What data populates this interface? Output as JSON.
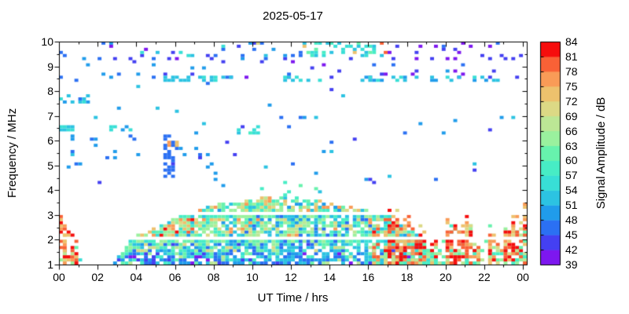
{
  "chart_data": {
    "type": "heatmap",
    "title": "2025-05-17",
    "xlabel": "UT Time / hrs",
    "ylabel": "Frequency / MHz",
    "colorbar_label": "Signal Amplitude / dB",
    "xlim": [
      0,
      24.2
    ],
    "ylim": [
      1,
      10
    ],
    "x_tick_values": [
      0,
      2,
      4,
      6,
      8,
      10,
      12,
      14,
      16,
      18,
      20,
      22,
      24
    ],
    "x_tick_labels": [
      "00",
      "02",
      "04",
      "06",
      "08",
      "10",
      "12",
      "14",
      "16",
      "18",
      "20",
      "22",
      "00"
    ],
    "x_minor_step_hr": 1,
    "y_tick_values": [
      1,
      2,
      3,
      4,
      5,
      6,
      7,
      8,
      9,
      10
    ],
    "y_tick_labels": [
      "1",
      "2",
      "3",
      "4",
      "5",
      "6",
      "7",
      "8",
      "9",
      "10"
    ],
    "y_minor_step_mhz": 0.5,
    "grid_resolution": {
      "dt_hr": 0.2,
      "df_mhz": 0.125
    },
    "background_color": "#ffffff",
    "axis_color": "#000000",
    "colorbar": {
      "min_db": 39,
      "max_db": 84,
      "step_db": 3,
      "tick_labels_top_to_bottom": [
        "84",
        "81",
        "78",
        "75",
        "72",
        "69",
        "66",
        "63",
        "60",
        "57",
        "54",
        "51",
        "48",
        "45",
        "42",
        "39"
      ],
      "colors_low_to_high": [
        "#7d17ef",
        "#4440f2",
        "#2b70f3",
        "#209ceb",
        "#2cc3e2",
        "#38dfd6",
        "#47edc5",
        "#67f2ad",
        "#9af19e",
        "#bce795",
        "#dcd985",
        "#edc16d",
        "#f99b57",
        "#f96136",
        "#f60d0d"
      ]
    },
    "seed": 20250517,
    "features": {
      "dome_envelope_hr_mhz": [
        [
          2.75,
          1.0
        ],
        [
          3.0,
          1.25
        ],
        [
          3.3,
          1.6
        ],
        [
          3.7,
          1.95
        ],
        [
          4.2,
          2.2
        ],
        [
          4.8,
          2.45
        ],
        [
          5.5,
          2.7
        ],
        [
          6.3,
          2.95
        ],
        [
          7.2,
          3.2
        ],
        [
          8.2,
          3.4
        ],
        [
          9.2,
          3.55
        ],
        [
          10.2,
          3.68
        ],
        [
          10.8,
          3.75
        ],
        [
          11.6,
          3.72
        ],
        [
          12.4,
          3.65
        ],
        [
          13.2,
          3.55
        ],
        [
          14.2,
          3.45
        ],
        [
          15.2,
          3.35
        ],
        [
          16.0,
          3.22
        ],
        [
          16.8,
          3.05
        ],
        [
          17.4,
          2.85
        ],
        [
          18.0,
          2.6
        ],
        [
          18.5,
          2.3
        ],
        [
          19.0,
          1.9
        ],
        [
          19.4,
          1.45
        ],
        [
          19.75,
          1.0
        ]
      ],
      "gaps_mhz": [
        [
          2.01,
          2.14
        ],
        [
          2.99,
          3.12
        ]
      ],
      "bright_rows_mhz": [
        [
          1.87,
          2.0
        ],
        [
          2.87,
          2.98
        ]
      ],
      "interference_stripes": [
        [
          0.0,
          0.3,
          3.25,
          1.0
        ],
        [
          0.3,
          0.5,
          3.15,
          0.55
        ],
        [
          0.65,
          1.0,
          2.45,
          0.9
        ],
        [
          16.35,
          16.6,
          3.3,
          0.6
        ],
        [
          16.9,
          17.2,
          3.5,
          0.75
        ],
        [
          17.25,
          18.4,
          3.6,
          0.95
        ],
        [
          18.55,
          19.0,
          2.7,
          0.75
        ],
        [
          19.25,
          19.6,
          2.3,
          0.55
        ],
        [
          20.15,
          20.5,
          3.35,
          0.8
        ],
        [
          20.7,
          21.25,
          3.5,
          0.85
        ],
        [
          21.45,
          21.7,
          1.9,
          0.5
        ],
        [
          22.25,
          22.7,
          2.7,
          0.75
        ],
        [
          23.1,
          23.45,
          3.25,
          0.8
        ],
        [
          23.6,
          24.2,
          3.45,
          0.85
        ]
      ],
      "speckle_bands": [
        [
          9.35,
          9.95,
          0,
          8,
          0.11,
          42,
          57,
          0.15,
          39,
          42
        ],
        [
          9.35,
          9.95,
          8,
          12.5,
          0.1,
          42,
          57,
          0.04,
          66,
          75
        ],
        [
          9.4,
          9.9,
          12.5,
          17,
          0.3,
          51,
          63,
          0.06,
          72,
          81
        ],
        [
          9.35,
          9.95,
          17,
          24.2,
          0.07,
          39,
          48,
          0,
          0,
          0
        ],
        [
          8.55,
          9.35,
          8,
          24.2,
          0.05,
          39,
          46,
          0,
          0,
          0
        ],
        [
          8.55,
          9.35,
          0,
          8,
          0.035,
          42,
          51,
          0,
          0,
          0
        ],
        [
          8.38,
          8.55,
          5.5,
          9,
          0.45,
          51,
          57,
          0,
          0,
          0
        ],
        [
          8.38,
          8.55,
          11.3,
          13.5,
          0.3,
          51,
          57,
          0,
          0,
          0
        ],
        [
          8.38,
          8.55,
          15.6,
          22.8,
          0.35,
          48,
          57,
          0,
          0,
          0
        ],
        [
          7.6,
          7.8,
          0,
          1.6,
          0.45,
          45,
          57,
          0,
          0,
          0
        ],
        [
          6.4,
          6.6,
          0,
          0.7,
          0.6,
          51,
          57,
          0,
          0,
          0
        ],
        [
          6.4,
          6.6,
          2.2,
          4.3,
          0.25,
          48,
          57,
          0,
          0,
          0
        ],
        [
          6.35,
          6.6,
          9.2,
          10.4,
          0.3,
          51,
          60,
          0,
          0,
          0
        ],
        [
          5.8,
          6.0,
          5.2,
          6.1,
          0.5,
          72,
          78,
          0,
          0,
          0
        ],
        [
          4.6,
          6.2,
          5.55,
          5.85,
          0.6,
          45,
          48,
          0,
          0,
          0
        ],
        [
          5.0,
          6.3,
          0,
          4.3,
          0.07,
          45,
          51,
          0,
          0,
          0
        ],
        [
          4.8,
          5.7,
          5.9,
          7.7,
          0.09,
          45,
          51,
          0,
          0,
          0
        ],
        [
          6.6,
          7.2,
          11.6,
          12.7,
          0.1,
          45,
          51,
          0,
          0,
          0
        ],
        [
          4.0,
          9.35,
          0,
          24.2,
          0.011,
          42,
          54,
          0,
          0,
          0
        ],
        [
          3.8,
          4.3,
          5,
          14,
          0.03,
          48,
          60,
          0.3,
          57,
          63
        ],
        [
          1.0,
          1.35,
          1.0,
          2.75,
          0.08,
          51,
          57,
          0,
          0,
          0
        ],
        [
          1.0,
          1.6,
          18.6,
          24.2,
          0.35,
          57,
          69,
          0.1,
          72,
          78
        ],
        [
          1.6,
          2.6,
          19.8,
          24.2,
          0.12,
          57,
          69,
          0.15,
          72,
          78
        ],
        [
          4.3,
          4.75,
          6,
          9,
          0.02,
          48,
          57,
          0,
          0,
          0
        ]
      ]
    }
  }
}
